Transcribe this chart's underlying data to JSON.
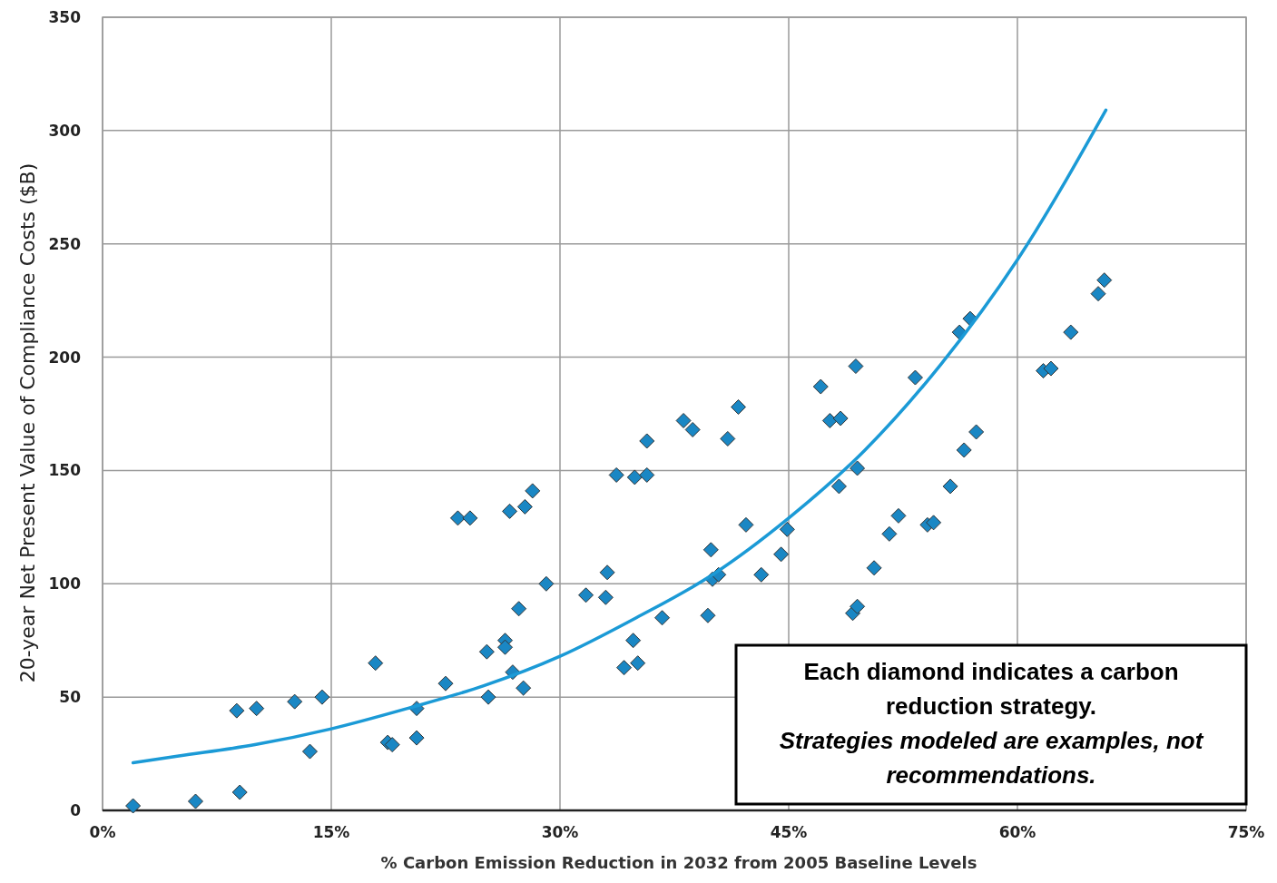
{
  "chart_data": {
    "type": "scatter",
    "xlabel": "% Carbon Emission Reduction in 2032 from 2005 Baseline Levels",
    "ylabel": "20-year Net Present Value of Compliance Costs ($B)",
    "xlim": [
      0,
      75
    ],
    "xticks": [
      {
        "value": 0,
        "label": "0%"
      },
      {
        "value": 15,
        "label": "15%"
      },
      {
        "value": 30,
        "label": "30%"
      },
      {
        "value": 45,
        "label": "45%"
      },
      {
        "value": 60,
        "label": "60%"
      },
      {
        "value": 75,
        "label": "75%"
      }
    ],
    "ylim": [
      0,
      350
    ],
    "yticks": [
      0,
      50,
      100,
      150,
      200,
      250,
      300,
      350
    ],
    "grid": true,
    "marker": "diamond",
    "annotations": [
      "Each diamond indicates a carbon reduction strategy.",
      "Strategies modeled are examples, not recommendations."
    ],
    "series": [
      {
        "color": "#1a87c4",
        "x": [
          2.0,
          6.1,
          9.0,
          8.8,
          10.1,
          12.6,
          13.6,
          14.4,
          17.9,
          18.7,
          19.0,
          20.6,
          20.6,
          22.5,
          23.3,
          24.1,
          25.2,
          25.3,
          26.4,
          26.4,
          26.7,
          26.9,
          27.3,
          27.7,
          27.6,
          28.2,
          29.1,
          31.7,
          33.0,
          33.1,
          33.7,
          34.2,
          34.8,
          34.9,
          35.1,
          35.7,
          35.7,
          36.7,
          38.1,
          38.7,
          39.7,
          39.9,
          40.0,
          40.4,
          41.0,
          41.7,
          42.2,
          43.2,
          44.5,
          44.9,
          47.1,
          47.7,
          48.4,
          48.3,
          49.2,
          49.5,
          49.4,
          49.5,
          50.6,
          51.6,
          52.2,
          53.3,
          54.1,
          54.5,
          55.6,
          56.2,
          56.5,
          56.9,
          57.3,
          61.7,
          62.2,
          63.5,
          65.3,
          65.7
        ],
        "values": [
          2,
          4,
          8,
          44,
          45,
          48,
          26,
          50,
          65,
          30,
          29,
          32,
          45,
          56,
          129,
          129,
          70,
          50,
          75,
          72,
          132,
          61,
          89,
          134,
          54,
          141,
          100,
          95,
          94,
          105,
          148,
          63,
          75,
          147,
          65,
          148,
          163,
          85,
          172,
          168,
          86,
          115,
          102,
          104,
          164,
          178,
          126,
          104,
          113,
          124,
          187,
          172,
          173,
          143,
          87,
          90,
          196,
          151,
          107,
          122,
          130,
          191,
          126,
          127,
          143,
          211,
          159,
          217,
          167,
          194,
          195,
          211,
          228,
          234
        ]
      },
      {
        "type": "line",
        "color": "#1b9ad6",
        "marker": "none",
        "line_style": "solid",
        "x": [
          2,
          5,
          10,
          15,
          20,
          25,
          30,
          35,
          40,
          45,
          50,
          55,
          60,
          65.8
        ],
        "values": [
          21,
          24,
          29,
          36,
          45,
          55,
          68,
          85,
          104,
          129,
          159,
          197,
          243,
          309
        ]
      }
    ]
  }
}
